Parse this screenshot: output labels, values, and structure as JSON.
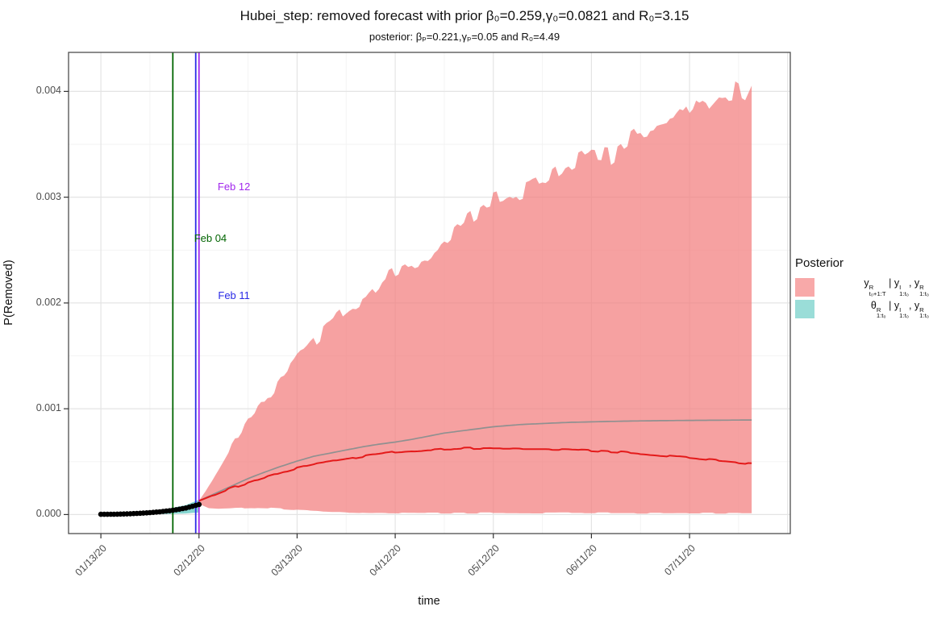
{
  "title": "Hubei_step: removed forecast with prior β₀=0.259,γ₀=0.0821 and R₀=3.15",
  "subtitle": "posterior: βₚ=0.221,γₚ=0.05 and R₀=4.49",
  "axes": {
    "x": {
      "label": "time",
      "ticks": [
        {
          "day": 0,
          "label": "01/13/20"
        },
        {
          "day": 30,
          "label": "02/12/20"
        },
        {
          "day": 60,
          "label": "03/13/20"
        },
        {
          "day": 90,
          "label": "04/12/20"
        },
        {
          "day": 120,
          "label": "05/12/20"
        },
        {
          "day": 150,
          "label": "06/11/20"
        },
        {
          "day": 180,
          "label": "07/11/20"
        }
      ],
      "extra_major_days": [
        210
      ],
      "minor_days": [
        15,
        45,
        75,
        105,
        135,
        165,
        195
      ],
      "range_days": [
        -9.9,
        210.8
      ]
    },
    "y": {
      "label": "P(Removed)",
      "ticks": [
        {
          "value": 0.0,
          "label": "0.000"
        },
        {
          "value": 0.001,
          "label": "0.001"
        },
        {
          "value": 0.002,
          "label": "0.002"
        },
        {
          "value": 0.003,
          "label": "0.003"
        },
        {
          "value": 0.004,
          "label": "0.004"
        }
      ],
      "minor_values": [
        0.0005,
        0.0015,
        0.0025,
        0.0035
      ],
      "range": [
        -0.00018,
        0.004366
      ]
    }
  },
  "legend": {
    "title": "Posterior",
    "entries": [
      {
        "swatch": "#F8A9A9",
        "parts": [
          {
            "b": "y",
            "sup": "R",
            "sub": "t₀+1:T"
          },
          {
            "t": " | "
          },
          {
            "b": "y",
            "sup": "I",
            "sub": "1:t₀"
          },
          {
            "t": ", "
          },
          {
            "b": "y",
            "sup": "R",
            "sub": "1:t₀"
          }
        ]
      },
      {
        "swatch": "#9ADDD8",
        "parts": [
          {
            "b": "θ",
            "sup": "R",
            "sub": "1:t₀"
          },
          {
            "t": " | "
          },
          {
            "b": "y",
            "sup": "I",
            "sub": "1:t₀"
          },
          {
            "t": ", "
          },
          {
            "b": "y",
            "sup": "R",
            "sub": "1:t₀"
          }
        ]
      }
    ]
  },
  "chart_data": {
    "type": "area",
    "x_unit": "days since 01/13/2020",
    "panel": {
      "grid_major_color": "#E4E4E4",
      "grid_minor_color": "#F2F2F2",
      "border_color": "#4D4D4D",
      "background": "#FFFFFF"
    },
    "vlines": [
      {
        "name": "lockdown-feb04",
        "label": "Feb 04",
        "day": 22,
        "color": "#006400",
        "label_day": 33.5,
        "label_value": 0.00261
      },
      {
        "name": "feb11",
        "label": "Feb 11",
        "day": 29,
        "color": "#2B2BE6",
        "label_day": 40.7,
        "label_value": 0.00207
      },
      {
        "name": "forecast-start-feb12",
        "label": "Feb 12",
        "day": 30,
        "color": "#A228ED",
        "label_day": 40.7,
        "label_value": 0.0031
      }
    ],
    "series": [
      {
        "name": "theta-posterior-band",
        "kind": "band",
        "color": "#85D5D0",
        "noisy": false,
        "upper": [
          [
            0,
            6e-06
          ],
          [
            6,
            1e-05
          ],
          [
            12,
            2e-05
          ],
          [
            16,
            3e-05
          ],
          [
            20,
            5e-05
          ],
          [
            23,
            7e-05
          ],
          [
            26,
            9e-05
          ],
          [
            28,
            0.000115
          ],
          [
            30,
            0.00014
          ]
        ],
        "lower": [
          [
            0,
            0.0
          ],
          [
            12,
            2e-06
          ],
          [
            20,
            5e-06
          ],
          [
            26,
            1e-05
          ],
          [
            30,
            2e-05
          ]
        ]
      },
      {
        "name": "forecast-credible-band",
        "kind": "band",
        "color": "rgba(242,125,125,0.72)",
        "noisy": true,
        "upper": [
          [
            30,
            0.00013
          ],
          [
            32,
            0.00022
          ],
          [
            34,
            0.00032
          ],
          [
            37,
            0.00048
          ],
          [
            40,
            0.00065
          ],
          [
            45,
            0.0009
          ],
          [
            48,
            0.00101
          ],
          [
            52,
            0.00115
          ],
          [
            56,
            0.00132
          ],
          [
            60,
            0.00148
          ],
          [
            64,
            0.00161
          ],
          [
            70,
            0.0018
          ],
          [
            76,
            0.00196
          ],
          [
            82,
            0.00208
          ],
          [
            88,
            0.00228
          ],
          [
            94,
            0.00238
          ],
          [
            100,
            0.00245
          ],
          [
            106,
            0.00262
          ],
          [
            112,
            0.0028
          ],
          [
            118,
            0.00294
          ],
          [
            124,
            0.003
          ],
          [
            130,
            0.00308
          ],
          [
            136,
            0.00315
          ],
          [
            142,
            0.0033
          ],
          [
            150,
            0.00344
          ],
          [
            156,
            0.00342
          ],
          [
            163,
            0.00359
          ],
          [
            170,
            0.00364
          ],
          [
            176,
            0.0037
          ],
          [
            182,
            0.00392
          ],
          [
            186,
            0.00384
          ],
          [
            190,
            0.00398
          ],
          [
            194,
            0.004
          ],
          [
            197,
            0.00394
          ],
          [
            199,
            0.00408
          ]
        ],
        "lower": [
          [
            30,
            0.0001
          ],
          [
            33,
            6e-05
          ],
          [
            36,
            5.5e-05
          ],
          [
            40,
            6e-05
          ],
          [
            46,
            6.5e-05
          ],
          [
            52,
            6e-05
          ],
          [
            58,
            5e-05
          ],
          [
            64,
            4e-05
          ],
          [
            70,
            3e-05
          ],
          [
            76,
            2.2e-05
          ],
          [
            84,
            1.8e-05
          ],
          [
            100,
            1.5e-05
          ],
          [
            199,
            1.5e-05
          ]
        ]
      },
      {
        "name": "posterior-mean-line",
        "kind": "line",
        "color": "#909090",
        "width": 1.7,
        "wiggle": false,
        "points": [
          [
            30,
            0.00013
          ],
          [
            35,
            0.0002
          ],
          [
            40,
            0.00027
          ],
          [
            45,
            0.00034
          ],
          [
            50,
            0.0004
          ],
          [
            55,
            0.000455
          ],
          [
            60,
            0.000505
          ],
          [
            65,
            0.00055
          ],
          [
            70,
            0.00058
          ],
          [
            75,
            0.00061
          ],
          [
            80,
            0.00064
          ],
          [
            85,
            0.000665
          ],
          [
            90,
            0.000685
          ],
          [
            95,
            0.00071
          ],
          [
            100,
            0.00074
          ],
          [
            105,
            0.00077
          ],
          [
            110,
            0.00079
          ],
          [
            115,
            0.00081
          ],
          [
            120,
            0.00083
          ],
          [
            128,
            0.00085
          ],
          [
            136,
            0.000862
          ],
          [
            144,
            0.000872
          ],
          [
            152,
            0.000878
          ],
          [
            160,
            0.000883
          ],
          [
            170,
            0.000887
          ],
          [
            180,
            0.00089
          ],
          [
            190,
            0.000892
          ],
          [
            199,
            0.000894
          ]
        ]
      },
      {
        "name": "forecast-median-line",
        "kind": "line",
        "color": "#E41A1A",
        "width": 2.0,
        "wiggle": true,
        "points": [
          [
            30,
            0.00013
          ],
          [
            35,
            0.00019
          ],
          [
            40,
            0.00025
          ],
          [
            45,
            0.0003
          ],
          [
            50,
            0.00035
          ],
          [
            55,
            0.000395
          ],
          [
            60,
            0.00044
          ],
          [
            65,
            0.000475
          ],
          [
            70,
            0.0005
          ],
          [
            75,
            0.000525
          ],
          [
            80,
            0.00055
          ],
          [
            85,
            0.00057
          ],
          [
            90,
            0.00059
          ],
          [
            95,
            0.0006
          ],
          [
            100,
            0.00061
          ],
          [
            105,
            0.00062
          ],
          [
            110,
            0.000625
          ],
          [
            115,
            0.000628
          ],
          [
            120,
            0.00063
          ],
          [
            128,
            0.000628
          ],
          [
            136,
            0.000622
          ],
          [
            144,
            0.000615
          ],
          [
            150,
            0.000605
          ],
          [
            158,
            0.000592
          ],
          [
            165,
            0.000575
          ],
          [
            172,
            0.000558
          ],
          [
            180,
            0.000535
          ],
          [
            186,
            0.000518
          ],
          [
            192,
            0.000502
          ],
          [
            196,
            0.00049
          ],
          [
            199,
            0.000482
          ]
        ]
      },
      {
        "name": "observed-removed-points",
        "kind": "scatter",
        "color": "#000000",
        "radius": 3.3,
        "day_step": 1,
        "points": [
          [
            0,
            2e-06
          ],
          [
            4,
            3e-06
          ],
          [
            8,
            6e-06
          ],
          [
            12,
            1.2e-05
          ],
          [
            15,
            1.8e-05
          ],
          [
            18,
            2.6e-05
          ],
          [
            21,
            3.6e-05
          ],
          [
            24,
            5e-05
          ],
          [
            26,
            6.2e-05
          ],
          [
            28,
            7.8e-05
          ],
          [
            30,
            9.5e-05
          ]
        ]
      }
    ]
  }
}
